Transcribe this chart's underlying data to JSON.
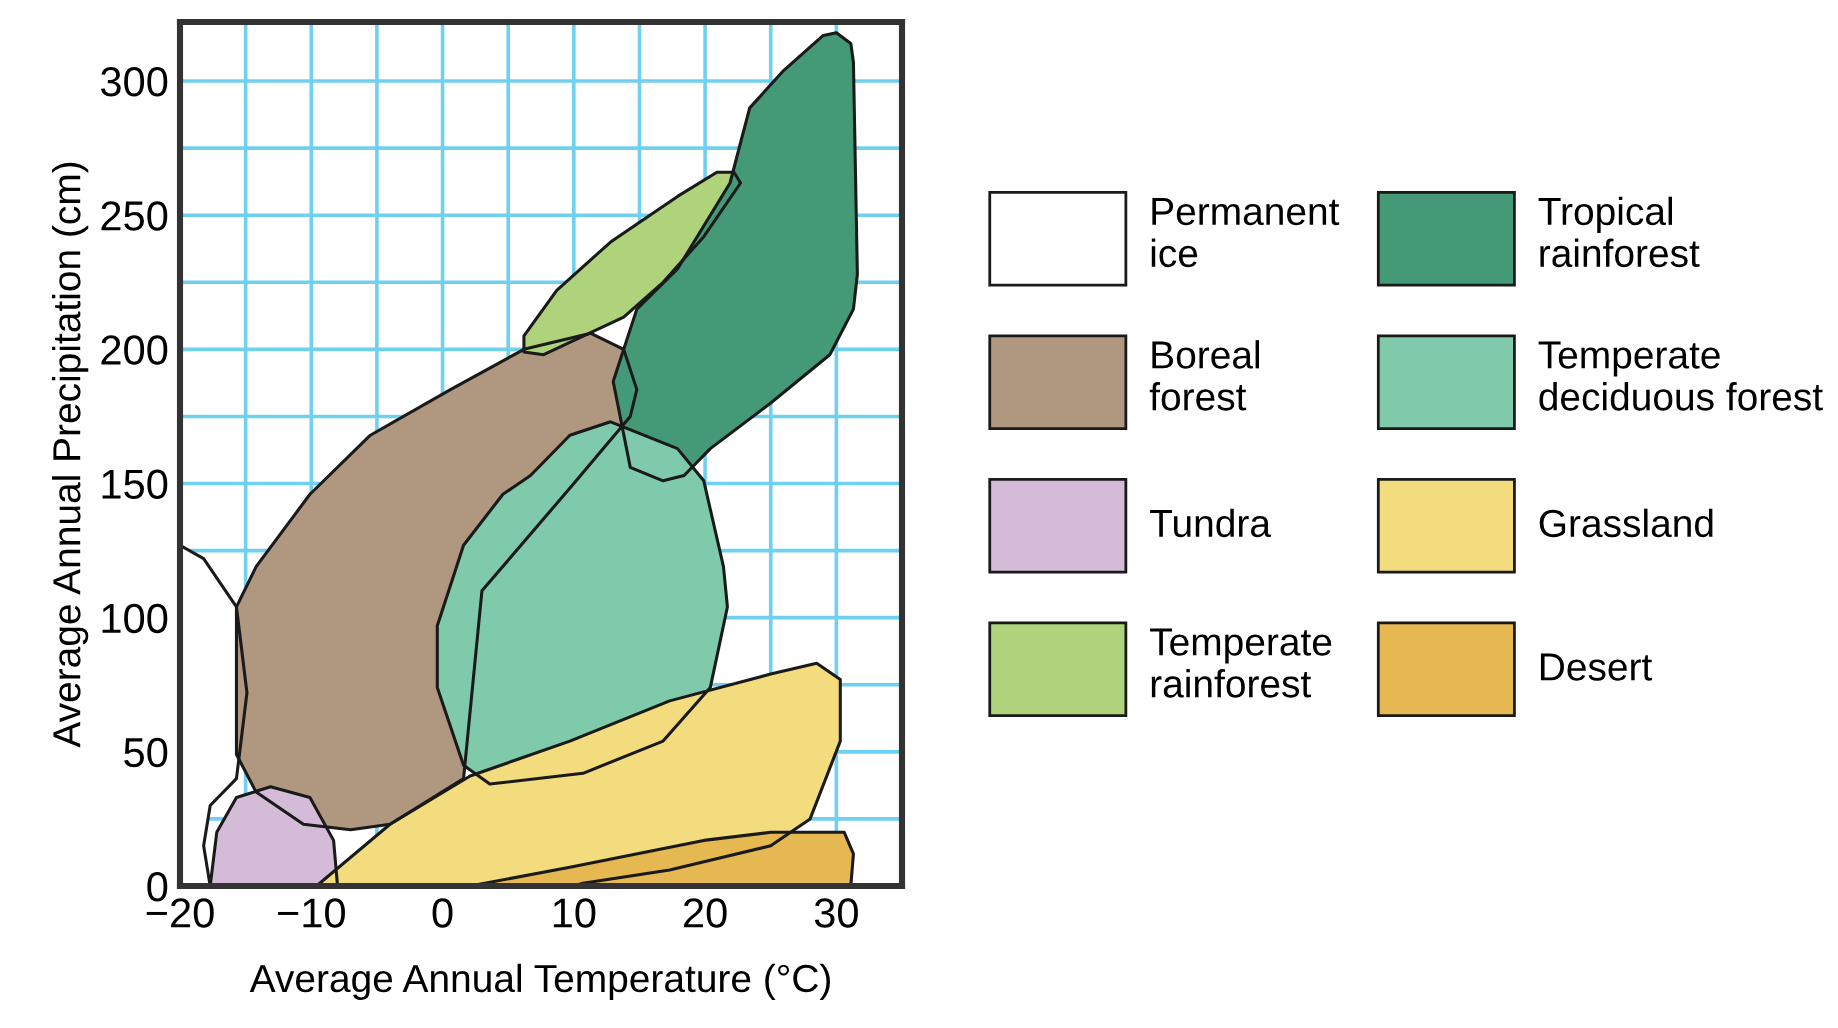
{
  "chart_data": {
    "type": "area",
    "xlabel": "Average Annual Temperature (°C)",
    "ylabel": "Average Annual Precipitation (cm)",
    "xlim": [
      -20,
      35
    ],
    "ylim": [
      0,
      322
    ],
    "xticks": [
      {
        "value": -20,
        "label": "−20"
      },
      {
        "value": -15,
        "label": null
      },
      {
        "value": -10,
        "label": "−10"
      },
      {
        "value": -5,
        "label": null
      },
      0,
      {
        "value": 5,
        "label": null
      },
      10,
      {
        "value": 15,
        "label": null
      },
      20,
      {
        "value": 25,
        "label": null
      },
      30
    ],
    "yticks": [
      0,
      {
        "value": 25,
        "label": null
      },
      50,
      {
        "value": 75,
        "label": null
      },
      100,
      {
        "value": 125,
        "label": null
      },
      150,
      {
        "value": 175,
        "label": null
      },
      200,
      {
        "value": 225,
        "label": null
      },
      250,
      {
        "value": 275,
        "label": null
      },
      300
    ],
    "grid": true,
    "legend": "right",
    "series": [
      {
        "name": "Permanent\nice",
        "color": "#ffffff",
        "x": [
          -20,
          -20,
          -18.2,
          -15.7,
          -14.9,
          -15.7,
          -17.7,
          -18.2,
          -17.7
        ],
        "values": [
          0,
          127,
          122,
          104,
          72,
          40,
          30,
          15,
          0
        ]
      },
      {
        "name": "Boreal\nforest",
        "color": "#b09880",
        "x": [
          -7.0,
          -10.6,
          -14.2,
          -15.7,
          -15.7,
          -14.2,
          -10.1,
          -5.5,
          0.6,
          6.2,
          11.3,
          13.8,
          14.8,
          14.3,
          10,
          3,
          1.6,
          -4.0
        ],
        "values": [
          21,
          23,
          35,
          49,
          104,
          119,
          146,
          168,
          185,
          200,
          206,
          200,
          185,
          175,
          150,
          110,
          40,
          23
        ]
      },
      {
        "name": "Tundra",
        "color": "#d4bcd9",
        "x": [
          -17.7,
          -17.2,
          -15.7,
          -13.1,
          -10.1,
          -8.3,
          -8.0
        ],
        "values": [
          0,
          20,
          33,
          37,
          33,
          17,
          0
        ]
      },
      {
        "name": "Temperate\nrainforest",
        "color": "#aed37a",
        "x": [
          22.2,
          22.7,
          19.9,
          16.8,
          13.8,
          7.7,
          6.2,
          6.2,
          8.7,
          12.8,
          17.9,
          20.9
        ],
        "values": [
          266,
          262,
          242,
          225,
          212,
          198,
          199,
          205,
          222,
          240,
          257,
          266
        ]
      },
      {
        "name": "Tropical\nrainforest",
        "color": "#449a77",
        "x": [
          30.0,
          31.1,
          31.3,
          31.6,
          31.3,
          29.5,
          25.0,
          20.4,
          18.4,
          16.8,
          14.3,
          13.0,
          14.8,
          17.9,
          21.9,
          22.7,
          23.4,
          26.0,
          29.0
        ],
        "values": [
          318,
          314,
          307,
          228,
          215,
          198,
          180,
          163,
          153,
          151,
          156,
          188,
          215,
          230,
          262,
          277,
          290,
          304,
          317
        ]
      },
      {
        "name": "Temperate\ndeciduous forest",
        "color": "#7ecaab",
        "x": [
          12.8,
          17.9,
          19.9,
          21.4,
          21.7,
          20.4,
          16.8,
          10.7,
          3.6,
          1.6,
          -0.4,
          -0.4,
          1.6,
          4.6,
          6.7,
          9.7
        ],
        "values": [
          173,
          163,
          151,
          119,
          104,
          74,
          54,
          42,
          38,
          45,
          74,
          97,
          127,
          146,
          153,
          168
        ]
      },
      {
        "name": "Grassland",
        "color": "#f3dc7e",
        "x": [
          -9.6,
          -4.0,
          2.1,
          9.7,
          17.3,
          25.0,
          28.5,
          30.3,
          30.3,
          28.0,
          25.0,
          17.3,
          10.7,
          10.0
        ],
        "values": [
          0,
          23,
          41,
          54,
          69,
          79,
          83,
          77,
          54,
          25,
          15,
          6,
          1,
          0
        ]
      },
      {
        "name": "Desert",
        "color": "#e5b852",
        "x": [
          2.1,
          9.7,
          19.9,
          25.0,
          30.6,
          31.3,
          31.1
        ],
        "values": [
          0,
          7,
          17,
          20,
          20,
          12,
          0
        ]
      }
    ]
  }
}
